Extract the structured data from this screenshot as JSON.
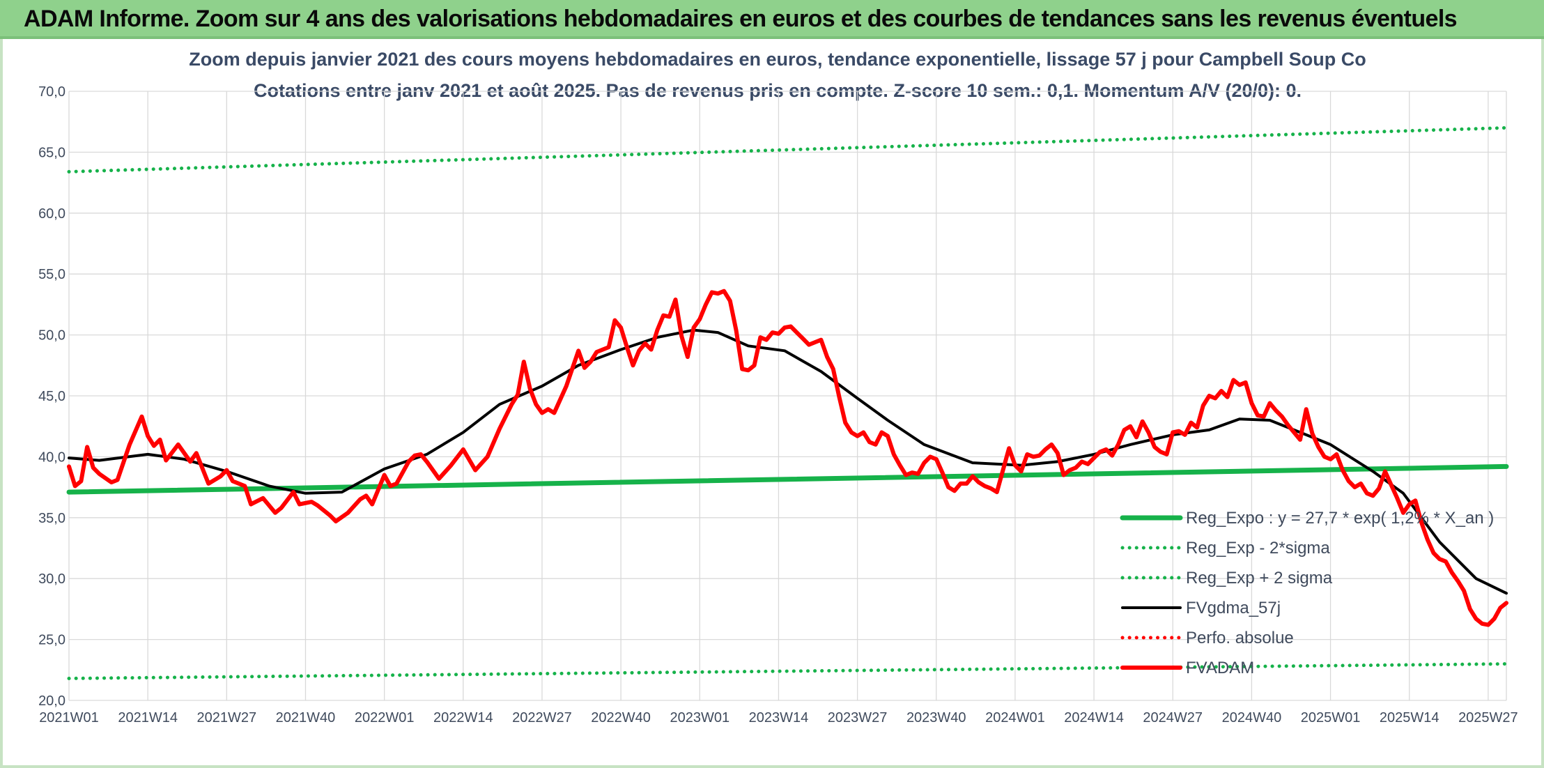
{
  "header": {
    "title": "ADAM Informe. Zoom sur 4 ans des valorisations hebdomadaires en euros et des courbes de tendances sans les revenus éventuels"
  },
  "colors": {
    "header_bg": "#8fd18c",
    "reg_expo": "#16b24a",
    "fv_gdma": "#000000",
    "fvadam": "#ff0000",
    "perfo": "#ff0000"
  },
  "chart_data": {
    "type": "line",
    "title": "Zoom depuis janvier 2021 des cours moyens hebdomadaires en euros, tendance exponentielle, lissage 57 j pour Campbell Soup Co",
    "subtitle": "Cotations entre janv 2021 et août 2025. Pas de revenus pris en compte. Z-score 10 sem.: 0,1. Momentum A/V (20/0): 0.",
    "ylim": [
      20,
      70
    ],
    "y_ticks": [
      "20,0",
      "25,0",
      "30,0",
      "35,0",
      "40,0",
      "45,0",
      "50,0",
      "55,0",
      "60,0",
      "65,0",
      "70,0"
    ],
    "x_tick_labels": [
      "2021W01",
      "2021W14",
      "2021W27",
      "2021W40",
      "2022W01",
      "2022W14",
      "2022W27",
      "2022W40",
      "2023W01",
      "2023W14",
      "2023W27",
      "2023W40",
      "2024W01",
      "2024W14",
      "2024W27",
      "2024W40",
      "2025W01",
      "2025W14",
      "2025W27"
    ],
    "grid": true,
    "legend_position": "bottom-right",
    "series": [
      {
        "name": "Reg_Expo : y = 27,7 * exp( 1,2% * X_an )",
        "style": "solid-thick",
        "color": "#16b24a",
        "points": [
          [
            1,
            37.1
          ],
          [
            238,
            39.2
          ]
        ]
      },
      {
        "name": "Reg_Exp - 2*sigma",
        "style": "dotted",
        "color": "#16b24a",
        "points": [
          [
            1,
            21.8
          ],
          [
            238,
            23.0
          ]
        ]
      },
      {
        "name": "Reg_Exp + 2 sigma",
        "style": "dotted",
        "color": "#16b24a",
        "points": [
          [
            1,
            63.4
          ],
          [
            238,
            67.0
          ]
        ]
      },
      {
        "name": "FVgdma_57j",
        "style": "solid",
        "color": "#000000",
        "points": [
          [
            1,
            39.9
          ],
          [
            6,
            39.7
          ],
          [
            14,
            40.2
          ],
          [
            20,
            39.8
          ],
          [
            27,
            38.8
          ],
          [
            34,
            37.6
          ],
          [
            40,
            37.0
          ],
          [
            46,
            37.1
          ],
          [
            53,
            39.0
          ],
          [
            60,
            40.2
          ],
          [
            66,
            42.0
          ],
          [
            72,
            44.3
          ],
          [
            79,
            45.8
          ],
          [
            85,
            47.5
          ],
          [
            92,
            48.8
          ],
          [
            98,
            49.8
          ],
          [
            104,
            50.4
          ],
          [
            108,
            50.2
          ],
          [
            113,
            49.1
          ],
          [
            119,
            48.7
          ],
          [
            125,
            47.0
          ],
          [
            131,
            44.8
          ],
          [
            136,
            43.0
          ],
          [
            142,
            41.0
          ],
          [
            150,
            39.5
          ],
          [
            158,
            39.3
          ],
          [
            164,
            39.6
          ],
          [
            170,
            40.2
          ],
          [
            176,
            41.0
          ],
          [
            183,
            41.8
          ],
          [
            189,
            42.2
          ],
          [
            194,
            43.1
          ],
          [
            199,
            43.0
          ],
          [
            205,
            41.8
          ],
          [
            209,
            41.0
          ],
          [
            216,
            38.8
          ],
          [
            221,
            37.0
          ],
          [
            227,
            33.0
          ],
          [
            233,
            30.0
          ],
          [
            238,
            28.8
          ]
        ]
      },
      {
        "name": "Perfo. absolue",
        "style": "dotted",
        "color": "#ff0000",
        "points": []
      },
      {
        "name": "FVADAM",
        "style": "solid-thick",
        "color": "#ff0000",
        "points": [
          [
            1,
            39.2
          ],
          [
            2,
            37.6
          ],
          [
            3,
            38.0
          ],
          [
            4,
            40.8
          ],
          [
            5,
            39.1
          ],
          [
            6,
            38.6
          ],
          [
            8,
            37.9
          ],
          [
            9,
            38.1
          ],
          [
            11,
            41.0
          ],
          [
            13,
            43.3
          ],
          [
            14,
            41.7
          ],
          [
            15,
            40.9
          ],
          [
            16,
            41.4
          ],
          [
            17,
            39.7
          ],
          [
            19,
            41.0
          ],
          [
            21,
            39.6
          ],
          [
            22,
            40.3
          ],
          [
            24,
            37.8
          ],
          [
            26,
            38.4
          ],
          [
            27,
            38.9
          ],
          [
            28,
            38.0
          ],
          [
            30,
            37.6
          ],
          [
            31,
            36.1
          ],
          [
            33,
            36.6
          ],
          [
            35,
            35.4
          ],
          [
            36,
            35.8
          ],
          [
            38,
            37.1
          ],
          [
            39,
            36.1
          ],
          [
            41,
            36.3
          ],
          [
            42,
            36.0
          ],
          [
            44,
            35.2
          ],
          [
            45,
            34.7
          ],
          [
            47,
            35.4
          ],
          [
            49,
            36.5
          ],
          [
            50,
            36.8
          ],
          [
            51,
            36.1
          ],
          [
            53,
            38.5
          ],
          [
            54,
            37.6
          ],
          [
            55,
            37.8
          ],
          [
            57,
            39.6
          ],
          [
            58,
            40.1
          ],
          [
            59,
            40.2
          ],
          [
            60,
            39.6
          ],
          [
            62,
            38.2
          ],
          [
            64,
            39.3
          ],
          [
            66,
            40.6
          ],
          [
            68,
            38.9
          ],
          [
            70,
            40.0
          ],
          [
            72,
            42.3
          ],
          [
            74,
            44.3
          ],
          [
            75,
            45.1
          ],
          [
            76,
            47.8
          ],
          [
            77,
            45.6
          ],
          [
            78,
            44.3
          ],
          [
            79,
            43.6
          ],
          [
            80,
            43.9
          ],
          [
            81,
            43.6
          ],
          [
            83,
            45.8
          ],
          [
            85,
            48.7
          ],
          [
            86,
            47.3
          ],
          [
            87,
            47.8
          ],
          [
            88,
            48.6
          ],
          [
            90,
            49.0
          ],
          [
            91,
            51.2
          ],
          [
            92,
            50.6
          ],
          [
            93,
            49.0
          ],
          [
            94,
            47.5
          ],
          [
            95,
            48.7
          ],
          [
            96,
            49.3
          ],
          [
            97,
            48.8
          ],
          [
            98,
            50.4
          ],
          [
            99,
            51.6
          ],
          [
            100,
            51.5
          ],
          [
            101,
            52.9
          ],
          [
            102,
            49.9
          ],
          [
            103,
            48.2
          ],
          [
            104,
            50.6
          ],
          [
            105,
            51.3
          ],
          [
            106,
            52.5
          ],
          [
            107,
            53.5
          ],
          [
            108,
            53.4
          ],
          [
            109,
            53.6
          ],
          [
            110,
            52.8
          ],
          [
            111,
            50.4
          ],
          [
            112,
            47.2
          ],
          [
            113,
            47.1
          ],
          [
            114,
            47.5
          ],
          [
            115,
            49.8
          ],
          [
            116,
            49.6
          ],
          [
            117,
            50.2
          ],
          [
            118,
            50.1
          ],
          [
            119,
            50.6
          ],
          [
            120,
            50.7
          ],
          [
            121,
            50.2
          ],
          [
            122,
            49.7
          ],
          [
            123,
            49.2
          ],
          [
            124,
            49.4
          ],
          [
            125,
            49.6
          ],
          [
            126,
            48.2
          ],
          [
            127,
            47.2
          ],
          [
            128,
            44.9
          ],
          [
            129,
            42.8
          ],
          [
            130,
            42.0
          ],
          [
            131,
            41.7
          ],
          [
            132,
            42.0
          ],
          [
            133,
            41.2
          ],
          [
            134,
            41.0
          ],
          [
            135,
            42.0
          ],
          [
            136,
            41.7
          ],
          [
            137,
            40.2
          ],
          [
            138,
            39.3
          ],
          [
            139,
            38.5
          ],
          [
            140,
            38.7
          ],
          [
            141,
            38.6
          ],
          [
            142,
            39.5
          ],
          [
            143,
            40.0
          ],
          [
            144,
            39.8
          ],
          [
            145,
            38.7
          ],
          [
            146,
            37.5
          ],
          [
            147,
            37.2
          ],
          [
            148,
            37.8
          ],
          [
            149,
            37.8
          ],
          [
            150,
            38.4
          ],
          [
            151,
            37.9
          ],
          [
            152,
            37.6
          ],
          [
            153,
            37.4
          ],
          [
            154,
            37.1
          ],
          [
            155,
            38.9
          ],
          [
            156,
            40.7
          ],
          [
            157,
            39.3
          ],
          [
            158,
            38.8
          ],
          [
            159,
            40.2
          ],
          [
            160,
            40.0
          ],
          [
            161,
            40.1
          ],
          [
            162,
            40.6
          ],
          [
            163,
            41.0
          ],
          [
            164,
            40.3
          ],
          [
            165,
            38.5
          ],
          [
            166,
            38.9
          ],
          [
            167,
            39.1
          ],
          [
            168,
            39.6
          ],
          [
            169,
            39.4
          ],
          [
            170,
            39.9
          ],
          [
            171,
            40.4
          ],
          [
            172,
            40.6
          ],
          [
            173,
            40.1
          ],
          [
            174,
            41.0
          ],
          [
            175,
            42.2
          ],
          [
            176,
            42.5
          ],
          [
            177,
            41.6
          ],
          [
            178,
            42.9
          ],
          [
            179,
            42.0
          ],
          [
            180,
            40.8
          ],
          [
            181,
            40.4
          ],
          [
            182,
            40.2
          ],
          [
            183,
            42.0
          ],
          [
            184,
            42.1
          ],
          [
            185,
            41.8
          ],
          [
            186,
            42.8
          ],
          [
            187,
            42.4
          ],
          [
            188,
            44.2
          ],
          [
            189,
            45.0
          ],
          [
            190,
            44.8
          ],
          [
            191,
            45.4
          ],
          [
            192,
            44.9
          ],
          [
            193,
            46.3
          ],
          [
            194,
            45.9
          ],
          [
            195,
            46.1
          ],
          [
            196,
            44.4
          ],
          [
            197,
            43.4
          ],
          [
            198,
            43.3
          ],
          [
            199,
            44.4
          ],
          [
            200,
            43.8
          ],
          [
            201,
            43.3
          ],
          [
            202,
            42.6
          ],
          [
            203,
            42.0
          ],
          [
            204,
            41.4
          ],
          [
            205,
            43.9
          ],
          [
            206,
            41.9
          ],
          [
            207,
            40.8
          ],
          [
            208,
            40.0
          ],
          [
            209,
            39.8
          ],
          [
            210,
            40.2
          ],
          [
            211,
            38.9
          ],
          [
            212,
            38.0
          ],
          [
            213,
            37.5
          ],
          [
            214,
            37.8
          ],
          [
            215,
            37.0
          ],
          [
            216,
            36.8
          ],
          [
            217,
            37.4
          ],
          [
            218,
            38.8
          ],
          [
            219,
            37.7
          ],
          [
            220,
            36.6
          ],
          [
            221,
            35.4
          ],
          [
            222,
            36.1
          ],
          [
            223,
            36.4
          ],
          [
            224,
            34.6
          ],
          [
            225,
            33.2
          ],
          [
            226,
            32.1
          ],
          [
            227,
            31.6
          ],
          [
            228,
            31.4
          ],
          [
            229,
            30.5
          ],
          [
            230,
            29.8
          ],
          [
            231,
            29.0
          ],
          [
            232,
            27.5
          ],
          [
            233,
            26.7
          ],
          [
            234,
            26.3
          ],
          [
            235,
            26.2
          ],
          [
            236,
            26.7
          ],
          [
            237,
            27.6
          ],
          [
            238,
            28.0
          ]
        ]
      }
    ]
  }
}
